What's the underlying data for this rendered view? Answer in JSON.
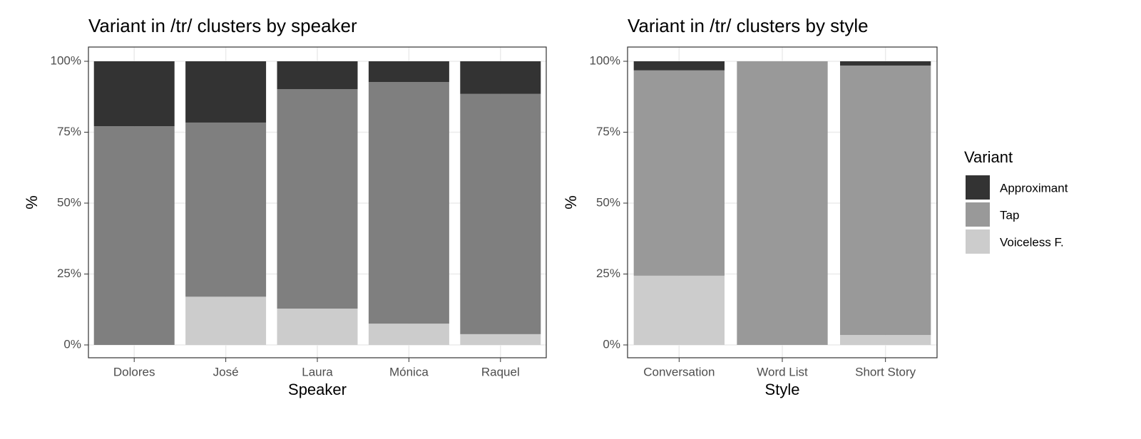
{
  "chart_data": [
    {
      "type": "bar",
      "stacked": true,
      "title": "Variant in /tr/ clusters by speaker",
      "x_label": "Speaker",
      "y_label": "%",
      "categories": [
        "Dolores",
        "José",
        "Laura",
        "Mónica",
        "Raquel"
      ],
      "series": [
        {
          "name": "Voiceless F.",
          "color": "#cccccc",
          "values": [
            0,
            17,
            12.8,
            7.5,
            3.8
          ]
        },
        {
          "name": "Tap",
          "color": "#7f7f7f",
          "values": [
            77.1,
            61.4,
            77.4,
            85.2,
            84.7
          ]
        },
        {
          "name": "Approximant",
          "color": "#333333",
          "values": [
            22.9,
            21.6,
            9.8,
            7.3,
            11.5
          ]
        }
      ],
      "ylim": [
        0,
        100
      ],
      "yticks": [
        {
          "value": 0,
          "label": "0%"
        },
        {
          "value": 25,
          "label": "25%"
        },
        {
          "value": 50,
          "label": "50%"
        },
        {
          "value": 75,
          "label": "75%"
        },
        {
          "value": 100,
          "label": "100%"
        }
      ],
      "grid": true
    },
    {
      "type": "bar",
      "stacked": true,
      "title": "Variant in /tr/ clusters by style",
      "x_label": "Style",
      "y_label": "%",
      "legend_title": "Variant",
      "categories": [
        "Conversation",
        "Word List",
        "Short Story"
      ],
      "series": [
        {
          "name": "Voiceless F.",
          "color": "#cccccc",
          "values": [
            24.4,
            0,
            3.5
          ]
        },
        {
          "name": "Tap",
          "color": "#999999",
          "values": [
            72.4,
            100,
            95
          ]
        },
        {
          "name": "Approximant",
          "color": "#333333",
          "values": [
            3.2,
            0,
            1.5
          ]
        }
      ],
      "ylim": [
        0,
        100
      ],
      "yticks": [
        {
          "value": 0,
          "label": "0%"
        },
        {
          "value": 25,
          "label": "25%"
        },
        {
          "value": 50,
          "label": "50%"
        },
        {
          "value": 75,
          "label": "75%"
        },
        {
          "value": 100,
          "label": "100%"
        }
      ],
      "grid": true
    }
  ]
}
